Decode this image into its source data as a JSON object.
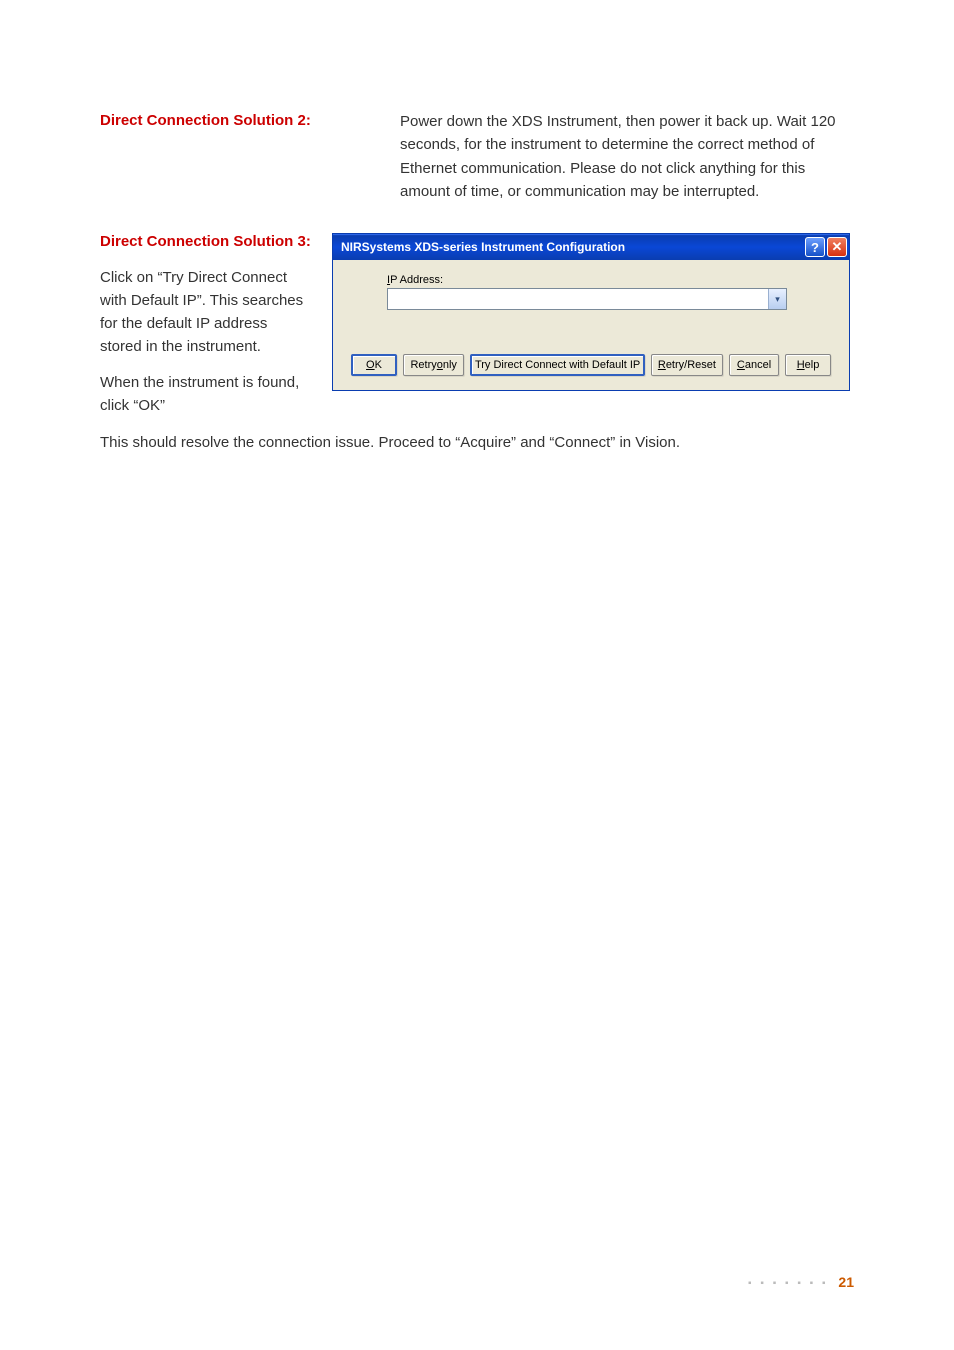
{
  "solution2": {
    "heading": "Direct Connection Solution 2:",
    "body": "Power down the XDS Instrument, then power it back up. Wait 120 seconds, for the instrument to determine the correct method of Ethernet communication. Please do not click anything for this amount of time, or communication may be interrupted."
  },
  "solution3": {
    "heading": "Direct Connection Solution 3:",
    "para1": "Click on “Try Direct Connect with Default IP”. This searches for the default IP address stored in the instrument.",
    "para2": "When the instrument is found, click “OK”",
    "closing": "This should resolve the connection issue. Proceed to “Acquire” and “Connect” in Vision."
  },
  "dialog": {
    "title": "NIRSystems XDS-series Instrument Configuration",
    "help_symbol": "?",
    "close_symbol": "✕",
    "ip_label_underline": "I",
    "ip_label_rest": "P Address:",
    "ip_value": "",
    "combo_arrow": "▾",
    "buttons": {
      "ok_u": "O",
      "ok_rest": "K",
      "retry_only_pre": "Retry ",
      "retry_only_u": "o",
      "retry_only_rest": "nly",
      "try_default": "Try Direct Connect with Default IP",
      "retry_reset_u": "R",
      "retry_reset_rest": "etry/Reset",
      "cancel_u": "C",
      "cancel_rest": "ancel",
      "help_u": "H",
      "help_rest": "elp"
    }
  },
  "footer": {
    "dots": "▪ ▪ ▪ ▪ ▪ ▪ ▪",
    "page": "21"
  },
  "colors": {
    "heading_red": "#cc0000",
    "body_text": "#333333",
    "titlebar_start": "#3b78ff",
    "titlebar_end": "#0a3db0",
    "dialog_bg": "#ece9d8",
    "page_num": "#cc5a00"
  }
}
